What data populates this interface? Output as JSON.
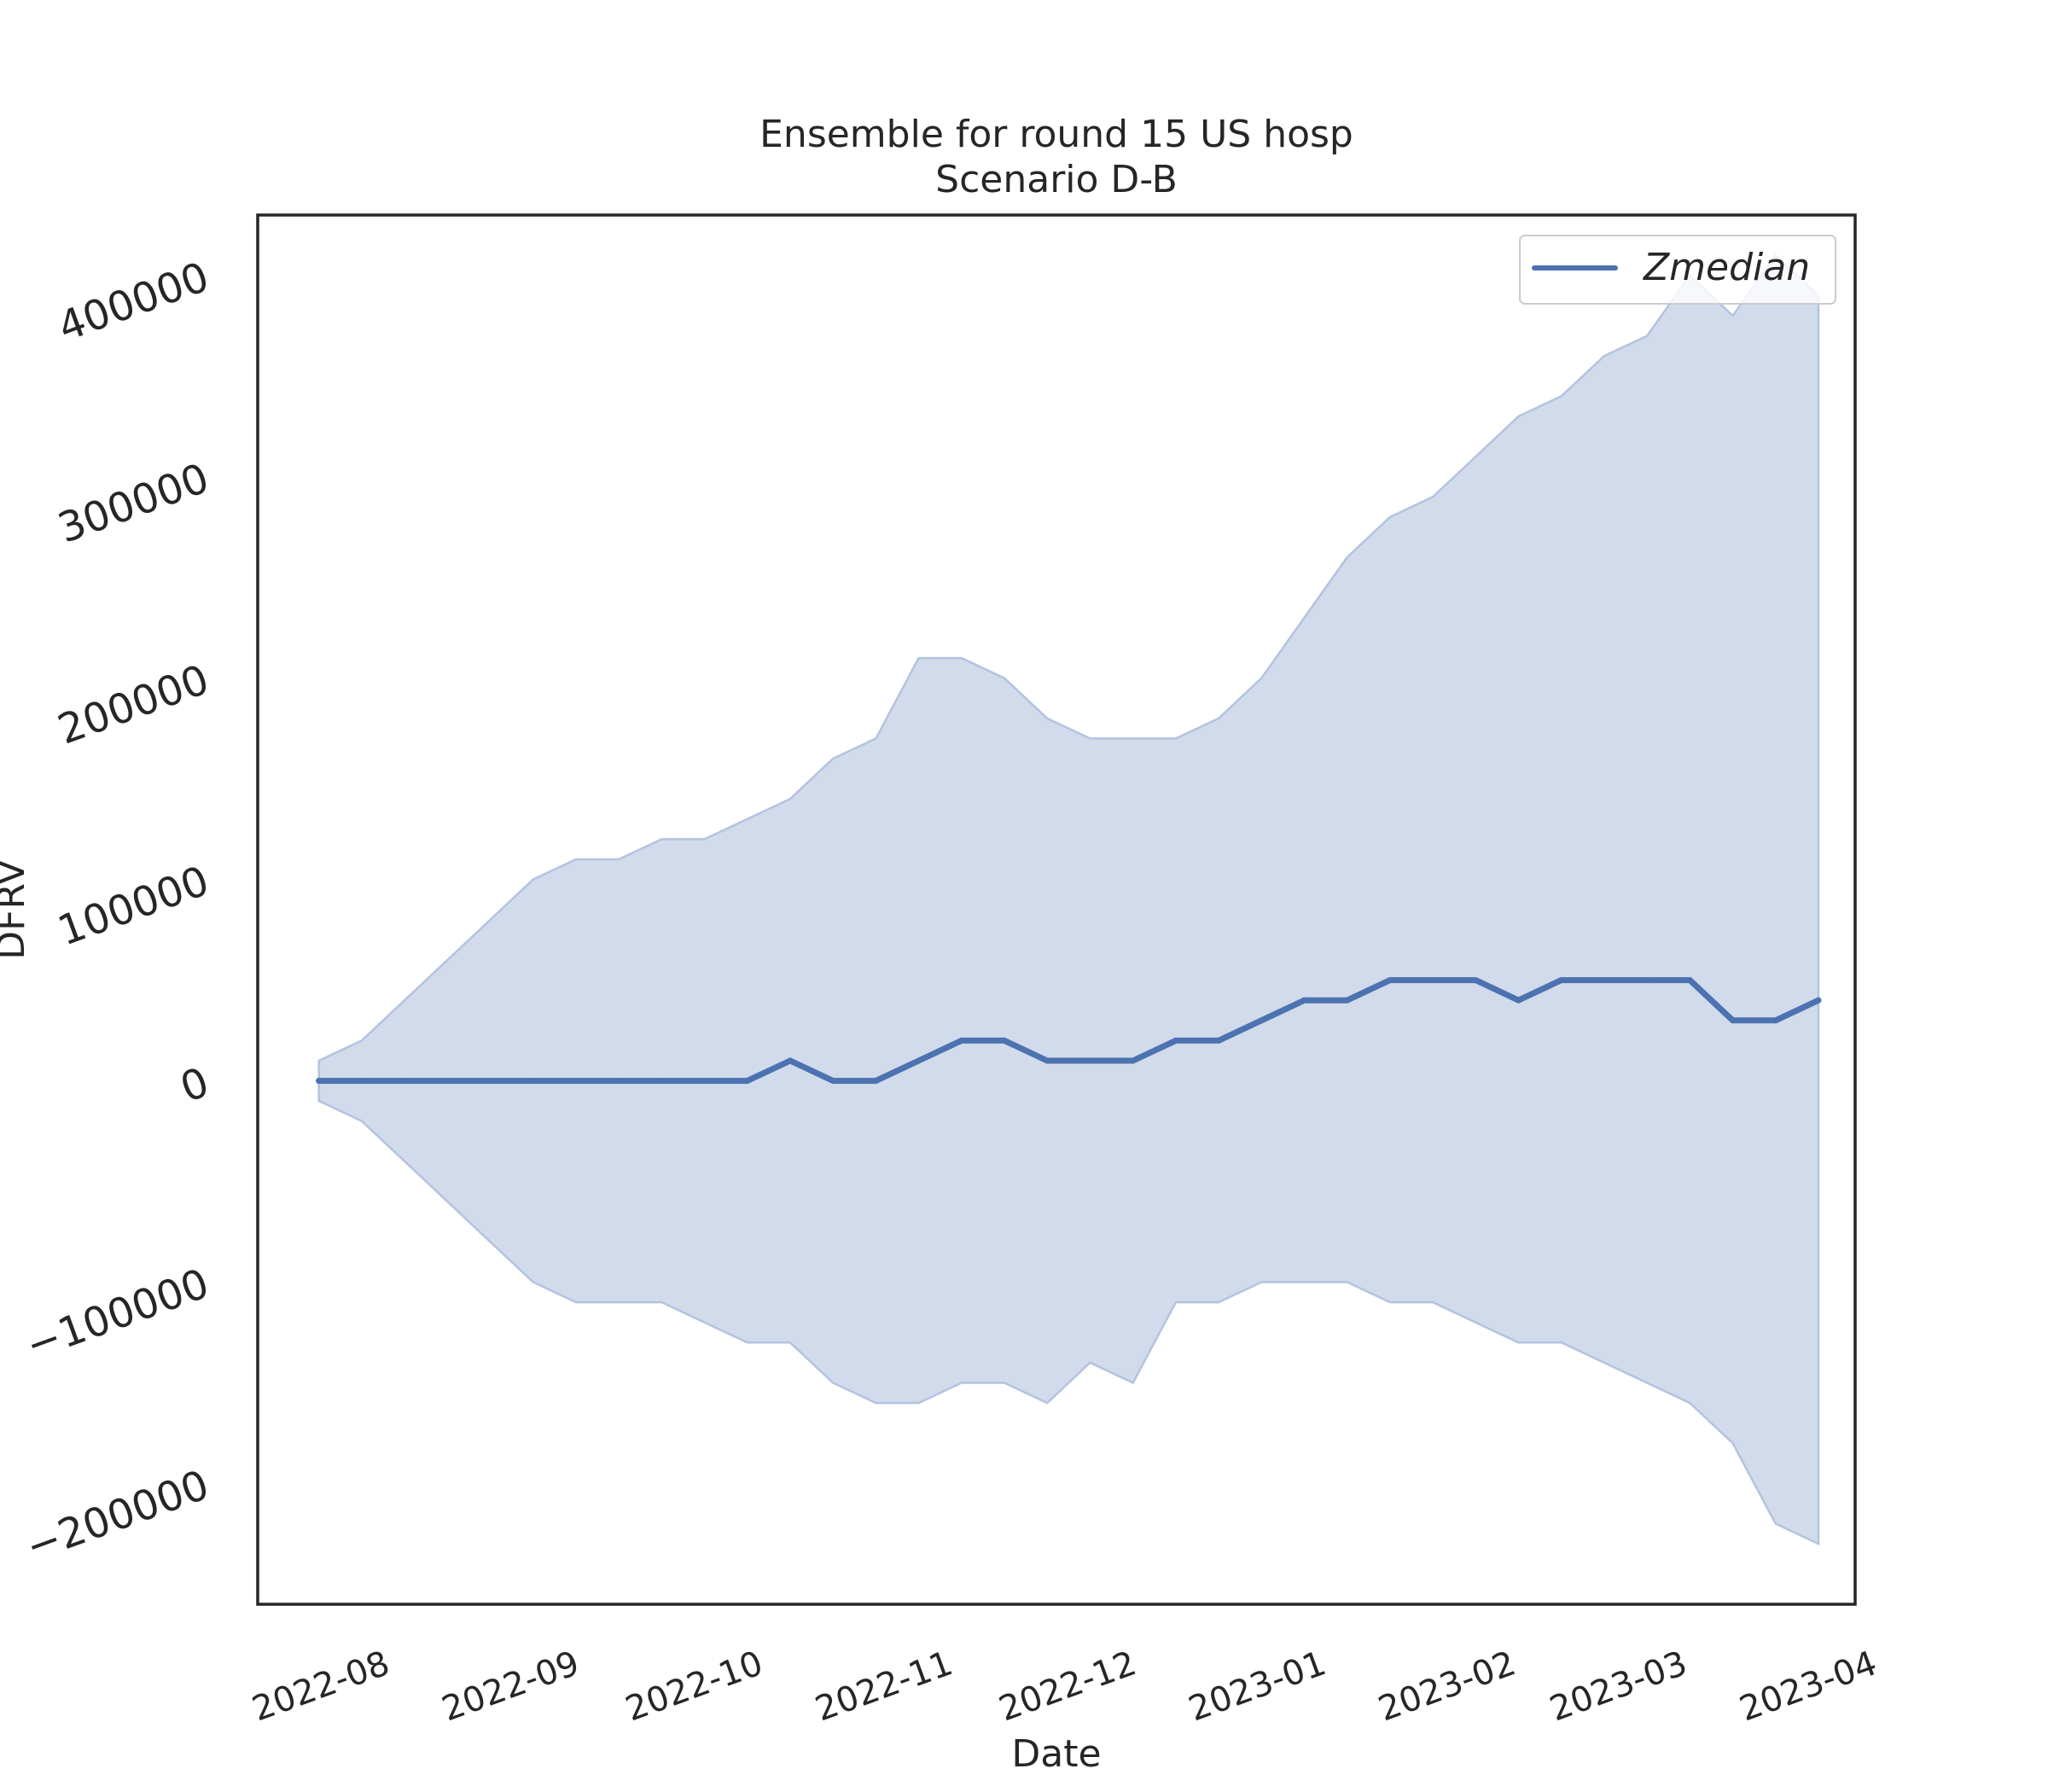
{
  "chart_data": {
    "type": "line",
    "title": "Ensemble for round 15 US hosp",
    "subtitle": "Scenario D-B",
    "xlabel": "Date",
    "ylabel": "DFRV",
    "ylim": [
      -260000,
      430000
    ],
    "xlim": [
      "2022-07-14",
      "2023-04-01"
    ],
    "yticks": [
      -200000,
      -100000,
      0,
      100000,
      200000,
      300000,
      400000
    ],
    "ytick_labels": [
      "−200000",
      "−100000",
      "0",
      "100000",
      "200000",
      "300000",
      "400000"
    ],
    "xticks": [
      "2022-08-01",
      "2022-09-01",
      "2022-10-01",
      "2022-11-01",
      "2022-12-01",
      "2023-01-01",
      "2023-02-01",
      "2023-03-01",
      "2023-04-01"
    ],
    "xtick_labels": [
      "2022-08",
      "2022-09",
      "2022-10",
      "2022-11",
      "2022-12",
      "2023-01",
      "2023-02",
      "2023-03",
      "2023-04"
    ],
    "grid": false,
    "legend_position": "top-right",
    "colors": {
      "line": "#4c72b0",
      "band": "#d1dbeb",
      "band_edge": "#b3c3df",
      "frame": "#262626"
    },
    "series": [
      {
        "name": "Zmedian",
        "x": [
          "2022-07-24",
          "2022-07-31",
          "2022-08-07",
          "2022-08-14",
          "2022-08-21",
          "2022-08-28",
          "2022-09-04",
          "2022-09-11",
          "2022-09-18",
          "2022-09-25",
          "2022-10-02",
          "2022-10-09",
          "2022-10-16",
          "2022-10-23",
          "2022-10-30",
          "2022-11-06",
          "2022-11-13",
          "2022-11-20",
          "2022-11-27",
          "2022-12-04",
          "2022-12-11",
          "2022-12-18",
          "2022-12-25",
          "2023-01-01",
          "2023-01-08",
          "2023-01-15",
          "2023-01-22",
          "2023-01-29",
          "2023-02-05",
          "2023-02-12",
          "2023-02-19",
          "2023-02-26",
          "2023-03-05",
          "2023-03-12",
          "2023-03-19",
          "2023-03-26"
        ],
        "values": [
          0,
          0,
          0,
          0,
          0,
          0,
          0,
          0,
          0,
          0,
          0,
          10000,
          0,
          0,
          10000,
          20000,
          20000,
          10000,
          10000,
          10000,
          20000,
          20000,
          30000,
          40000,
          40000,
          50000,
          50000,
          50000,
          40000,
          50000,
          50000,
          50000,
          50000,
          30000,
          30000,
          40000
        ],
        "lower": [
          -10000,
          -20000,
          -40000,
          -60000,
          -80000,
          -100000,
          -110000,
          -110000,
          -110000,
          -120000,
          -130000,
          -130000,
          -150000,
          -160000,
          -160000,
          -150000,
          -150000,
          -160000,
          -140000,
          -150000,
          -110000,
          -110000,
          -100000,
          -100000,
          -100000,
          -110000,
          -110000,
          -120000,
          -130000,
          -130000,
          -140000,
          -150000,
          -160000,
          -180000,
          -220000,
          -230000
        ],
        "upper": [
          10000,
          20000,
          40000,
          60000,
          80000,
          100000,
          110000,
          110000,
          120000,
          120000,
          130000,
          140000,
          160000,
          170000,
          210000,
          210000,
          200000,
          180000,
          170000,
          170000,
          170000,
          180000,
          200000,
          230000,
          260000,
          280000,
          290000,
          310000,
          330000,
          340000,
          360000,
          370000,
          400000,
          380000,
          410000,
          390000
        ]
      }
    ]
  }
}
